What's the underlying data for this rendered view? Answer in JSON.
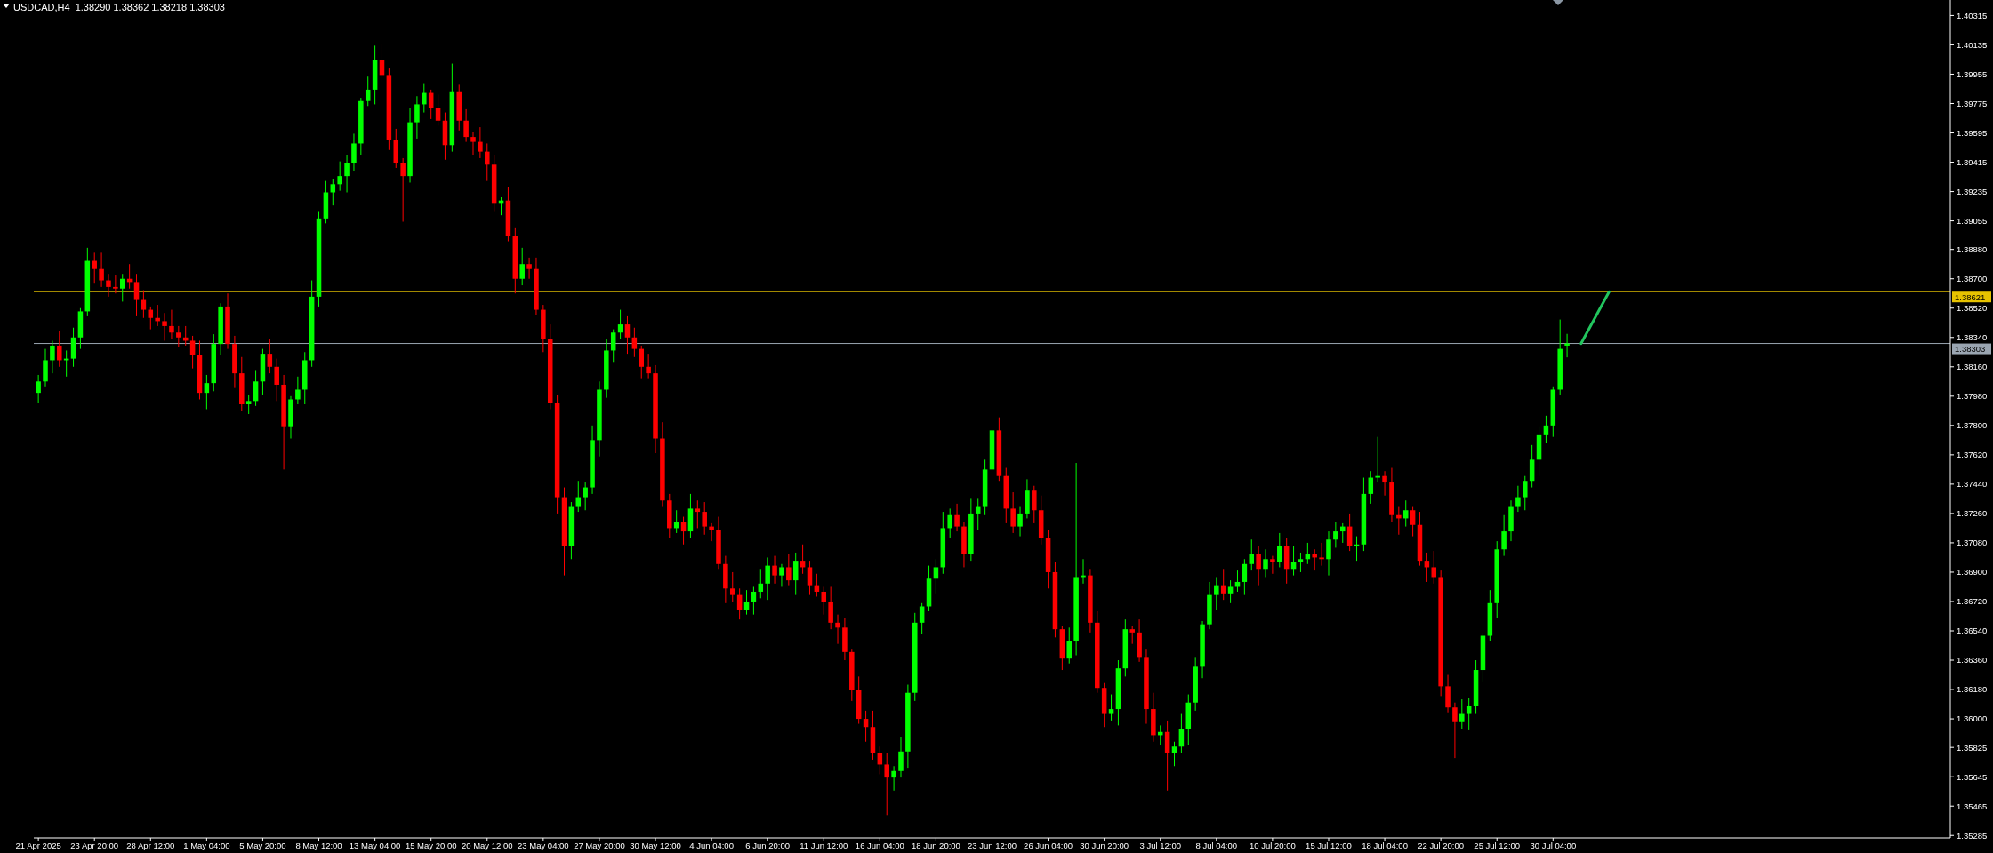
{
  "chart_data": {
    "type": "candlestick",
    "title": "USDCAD,H4  1.38290 1.38362 1.38218 1.38303",
    "categories": [
      "21 Apr 2025",
      null,
      null,
      null,
      null,
      null,
      null,
      null,
      "23 Apr 20:00",
      null,
      null,
      null,
      null,
      null,
      null,
      null,
      "28 Apr 12:00",
      null,
      null,
      null,
      null,
      null,
      null,
      null,
      "1 May 04:00",
      null,
      null,
      null,
      null,
      null,
      null,
      null,
      "5 May 20:00",
      null,
      null,
      null,
      null,
      null,
      null,
      null,
      "8 May 12:00",
      null,
      null,
      null,
      null,
      null,
      null,
      null,
      "13 May 04:00",
      null,
      null,
      null,
      null,
      null,
      null,
      null,
      "15 May 20:00",
      null,
      null,
      null,
      null,
      null,
      null,
      null,
      "20 May 12:00",
      null,
      null,
      null,
      null,
      null,
      null,
      null,
      "23 May 04:00",
      null,
      null,
      null,
      null,
      null,
      null,
      null,
      "27 May 20:00",
      null,
      null,
      null,
      null,
      null,
      null,
      null,
      "30 May 12:00",
      null,
      null,
      null,
      null,
      null,
      null,
      null,
      "4 Jun 04:00",
      null,
      null,
      null,
      null,
      null,
      null,
      null,
      "6 Jun 20:00",
      null,
      null,
      null,
      null,
      null,
      null,
      null,
      "11 Jun 12:00",
      null,
      null,
      null,
      null,
      null,
      null,
      null,
      "16 Jun 04:00",
      null,
      null,
      null,
      null,
      null,
      null,
      null,
      "18 Jun 20:00",
      null,
      null,
      null,
      null,
      null,
      null,
      null,
      "23 Jun 12:00",
      null,
      null,
      null,
      null,
      null,
      null,
      null,
      "26 Jun 04:00",
      null,
      null,
      null,
      null,
      null,
      null,
      null,
      "30 Jun 20:00",
      null,
      null,
      null,
      null,
      null,
      null,
      null,
      "3 Jul 12:00",
      null,
      null,
      null,
      null,
      null,
      null,
      null,
      "8 Jul 04:00",
      null,
      null,
      null,
      null,
      null,
      null,
      null,
      "10 Jul 20:00",
      null,
      null,
      null,
      null,
      null,
      null,
      null,
      "15 Jul 12:00",
      null,
      null,
      null,
      null,
      null,
      null,
      null,
      "18 Jul 04:00",
      null,
      null,
      null,
      null,
      null,
      null,
      null,
      "22 Jul 20:00",
      null,
      null,
      null,
      null,
      null,
      null,
      null,
      "25 Jul 12:00",
      null,
      null,
      null,
      null,
      null,
      null,
      null,
      "30 Jul 04:00",
      null,
      null,
      null,
      null,
      null,
      null,
      null,
      null,
      null,
      null,
      null,
      null,
      null,
      null,
      null,
      null,
      null,
      null,
      null,
      null,
      null,
      null,
      null,
      null,
      null,
      null,
      null,
      null,
      null,
      null,
      null,
      null,
      null,
      null,
      null,
      null,
      null,
      null,
      null,
      null,
      null,
      null,
      null,
      null,
      null,
      null,
      null,
      null,
      null,
      null,
      null,
      null,
      null,
      null,
      null,
      null
    ],
    "colors": [
      "#00ff00",
      "#00ff00",
      "#00ff00",
      "#ff0000",
      "#00ff00",
      "#00ff00",
      "#00ff00",
      "#00ff00",
      "#ff0000",
      "#ff0000",
      "#ff0000",
      "#ff0000",
      "#00ff00",
      "#ff0000",
      "#ff0000",
      "#ff0000",
      "#ff0000",
      "#ff0000",
      "#ff0000",
      "#ff0000",
      "#ff0000",
      "#ff0000",
      "#ff0000",
      "#ff0000",
      "#00ff00",
      "#00ff00",
      "#00ff00",
      "#ff0000",
      "#ff0000",
      "#ff0000",
      "#00ff00",
      "#00ff00",
      "#00ff00",
      "#ff0000",
      "#ff0000",
      "#ff0000",
      "#00ff00",
      "#00ff00",
      "#00ff00",
      "#00ff00",
      "#00ff00",
      "#00ff00",
      "#00ff00",
      "#00ff00",
      "#00ff00",
      "#00ff00",
      "#00ff00",
      "#00ff00",
      "#00ff00",
      "#ff0000",
      "#ff0000",
      "#ff0000",
      "#ff0000",
      "#00ff00",
      "#00ff00",
      "#00ff00",
      "#ff0000",
      "#ff0000",
      "#ff0000",
      "#00ff00",
      "#ff0000",
      "#ff0000",
      "#ff0000",
      "#ff0000",
      "#ff0000",
      "#ff0000",
      "#00ff00",
      "#ff0000",
      "#ff0000",
      "#00ff00",
      "#ff0000",
      "#ff0000",
      "#ff0000",
      "#ff0000",
      "#ff0000",
      "#ff0000",
      "#00ff00",
      "#00ff00",
      "#00ff00",
      "#00ff00",
      "#00ff00",
      "#00ff00",
      "#00ff00",
      "#00ff00",
      "#ff0000",
      "#ff0000",
      "#ff0000",
      "#ff0000",
      "#ff0000",
      "#ff0000",
      "#ff0000",
      "#00ff00",
      "#ff0000",
      "#00ff00",
      "#ff0000",
      "#ff0000",
      "#ff0000",
      "#ff0000",
      "#ff0000",
      "#ff0000",
      "#ff0000",
      "#00ff00",
      "#00ff00",
      "#00ff00",
      "#00ff00",
      "#ff0000",
      "#00ff00",
      "#ff0000",
      "#00ff00",
      "#ff0000",
      "#ff0000",
      "#ff0000",
      "#ff0000",
      "#ff0000",
      "#ff0000",
      "#ff0000",
      "#ff0000",
      "#ff0000",
      "#ff0000",
      "#ff0000",
      "#ff0000",
      "#ff0000",
      "#00ff00",
      "#00ff00",
      "#00ff00",
      "#00ff00",
      "#00ff00",
      "#00ff00",
      "#00ff00",
      "#00ff00",
      "#00ff00",
      "#ff0000",
      "#ff0000",
      "#00ff00",
      "#00ff00",
      "#00ff00",
      "#00ff00",
      "#ff0000",
      "#ff0000",
      "#ff0000",
      "#00ff00",
      "#00ff00",
      "#ff0000",
      "#ff0000",
      "#ff0000",
      "#ff0000",
      "#ff0000",
      "#00ff00",
      "#00ff00",
      "#00ff00",
      "#ff0000",
      "#ff0000",
      "#ff0000",
      "#00ff00",
      "#00ff00",
      "#00ff00",
      "#ff0000",
      "#ff0000",
      "#ff0000",
      "#ff0000",
      "#00ff00",
      "#ff0000",
      "#00ff00",
      "#00ff00",
      "#00ff00",
      "#00ff00",
      "#00ff00",
      "#00ff00",
      "#00ff00",
      "#ff0000",
      "#00ff00",
      "#00ff00",
      "#00ff00",
      "#00ff00",
      "#ff0000",
      "#00ff00",
      "#ff0000",
      "#00ff00",
      "#ff0000",
      "#00ff00",
      "#00ff00",
      "#00ff00",
      "#ff0000",
      "#ff0000",
      "#00ff00",
      "#00ff00",
      "#00ff00",
      "#ff0000",
      "#00ff00",
      "#00ff00",
      "#00ff00",
      "#00ff00",
      "#ff0000",
      "#ff0000",
      "#ff0000",
      "#00ff00",
      "#ff0000",
      "#ff0000",
      "#ff0000",
      "#ff0000",
      "#ff0000",
      "#ff0000",
      "#ff0000",
      "#00ff00",
      "#00ff00",
      "#00ff00",
      "#00ff00",
      "#00ff00",
      "#00ff00",
      "#00ff00",
      "#00ff00",
      "#00ff00",
      "#00ff00",
      "#00ff00",
      "#00ff00",
      "#00ff00",
      "#00ff00",
      "#00ff00",
      "#00ff00",
      null,
      null,
      null,
      null,
      null,
      null,
      null,
      null,
      null,
      null,
      null,
      null,
      null,
      null,
      null,
      null,
      null,
      null,
      null,
      null,
      null,
      null,
      null,
      null,
      null,
      null,
      null,
      null,
      null,
      null,
      null,
      null,
      null,
      null,
      null,
      null,
      null,
      null,
      null,
      null,
      null,
      null,
      null,
      null,
      null,
      null,
      null,
      null,
      null,
      null,
      null,
      null,
      null,
      null
    ],
    "ylim": [
      1.3527,
      1.4041
    ],
    "yticks": [
      1.40315,
      1.40135,
      1.39955,
      1.39775,
      1.39595,
      1.39415,
      1.39235,
      1.39055,
      {
        "value": 1.3888,
        "label": "1.38880"
      },
      {
        "value": 1.387,
        "label": "1.38700"
      },
      {
        "value": 1.3852,
        "label": "1.38520"
      },
      {
        "value": 1.3834,
        "label": "1.38340"
      },
      {
        "value": 1.3816,
        "label": "1.38160"
      },
      {
        "value": 1.3798,
        "label": "1.37980"
      },
      {
        "value": 1.378,
        "label": "1.37800"
      },
      {
        "value": 1.3762,
        "label": "1.37620"
      },
      {
        "value": 1.3744,
        "label": "1.37440"
      },
      {
        "value": 1.3726,
        "label": "1.37260"
      },
      {
        "value": 1.3708,
        "label": "1.37080"
      },
      {
        "value": 1.369,
        "label": "1.36900"
      },
      {
        "value": 1.3672,
        "label": "1.36720"
      },
      {
        "value": 1.3654,
        "label": "1.36540"
      },
      {
        "value": 1.3636,
        "label": "1.36360"
      },
      {
        "value": 1.3618,
        "label": "1.36180"
      },
      {
        "value": 1.36,
        "label": "1.36000"
      },
      1.35825,
      1.35645,
      1.35465,
      1.35285
    ],
    "ref_lines": [
      {
        "axis": "y",
        "value": 1.38621,
        "label": "1.38621",
        "color": "#e6c200"
      },
      {
        "axis": "y",
        "value": 1.38303,
        "label": "1.38303",
        "color": "#9aa5b1"
      }
    ],
    "series": [
      {
        "type": "line",
        "color": "#22c55e",
        "values": [
          null,
          null,
          null,
          null,
          null,
          null,
          null,
          null,
          null,
          null,
          null,
          null,
          null,
          null,
          null,
          null,
          null,
          null,
          null,
          null,
          null,
          null,
          null,
          null,
          null,
          null,
          null,
          null,
          null,
          null,
          null,
          null,
          null,
          null,
          null,
          null,
          null,
          null,
          null,
          null,
          null,
          null,
          null,
          null,
          null,
          null,
          null,
          null,
          null,
          null,
          null,
          null,
          null,
          null,
          null,
          null,
          null,
          null,
          null,
          null,
          null,
          null,
          null,
          null,
          null,
          null,
          null,
          null,
          null,
          null,
          null,
          null,
          null,
          null,
          null,
          null,
          null,
          null,
          null,
          null,
          null,
          null,
          null,
          null,
          null,
          null,
          null,
          null,
          null,
          null,
          null,
          null,
          null,
          null,
          null,
          null,
          null,
          null,
          null,
          null,
          null,
          null,
          null,
          null,
          null,
          null,
          null,
          null,
          null,
          null,
          null,
          null,
          null,
          null,
          null,
          null,
          null,
          null,
          null,
          null,
          null,
          null,
          null,
          null,
          null,
          null,
          null,
          null,
          null,
          null,
          null,
          null,
          null,
          null,
          null,
          null,
          null,
          null,
          null,
          null,
          null,
          null,
          null,
          null,
          null,
          null,
          null,
          null,
          null,
          null,
          null,
          null,
          null,
          null,
          null,
          null,
          null,
          null,
          null,
          null,
          null,
          null,
          null,
          null,
          null,
          null,
          null,
          null,
          null,
          null,
          null,
          null,
          null,
          null,
          null,
          null,
          null,
          null,
          null,
          null,
          null,
          null,
          null,
          null,
          null,
          null,
          null,
          null,
          null,
          null,
          null,
          null,
          null,
          null,
          null,
          null,
          null,
          null,
          null,
          null,
          null,
          null,
          null,
          null,
          null,
          null,
          null,
          null,
          null,
          null,
          null,
          null,
          null,
          null,
          null,
          null,
          null,
          null,
          null,
          null,
          1.38303,
          null,
          null,
          null,
          1.38621,
          null,
          null,
          null,
          null,
          null,
          null,
          null,
          null,
          null,
          null,
          null,
          null,
          null,
          null,
          null,
          null,
          null,
          null,
          null,
          null,
          null,
          null,
          null,
          null,
          null,
          null,
          null,
          null,
          null,
          null,
          null,
          null,
          null,
          null,
          null,
          null,
          null,
          null,
          null,
          null,
          null,
          null,
          null,
          null,
          null,
          null,
          null,
          null
        ]
      }
    ],
    "ohlc": [
      [
        1.38,
        1.3811,
        1.3794,
        1.3807
      ],
      [
        1.3807,
        1.3827,
        1.3804,
        1.382
      ],
      [
        1.382,
        1.3832,
        1.3812,
        1.3829
      ],
      [
        1.3829,
        1.3838,
        1.3816,
        1.382
      ],
      [
        1.382,
        1.3826,
        1.381,
        1.3821
      ],
      [
        1.3821,
        1.384,
        1.3816,
        1.3834
      ],
      [
        1.3834,
        1.3852,
        1.3827,
        1.385
      ],
      [
        1.385,
        1.3889,
        1.3847,
        1.3881
      ],
      [
        1.3881,
        1.3886,
        1.3867,
        1.3876
      ],
      [
        1.3876,
        1.3886,
        1.3865,
        1.3869
      ],
      [
        1.3869,
        1.3873,
        1.3859,
        1.3865
      ],
      [
        1.3865,
        1.3872,
        1.3861,
        1.3864
      ],
      [
        1.3864,
        1.3873,
        1.3856,
        1.387
      ],
      [
        1.387,
        1.3879,
        1.3864,
        1.3868
      ],
      [
        1.3868,
        1.3873,
        1.3847,
        1.3857
      ],
      [
        1.3857,
        1.3863,
        1.3846,
        1.3851
      ],
      [
        1.3851,
        1.3853,
        1.3839,
        1.3846
      ],
      [
        1.3846,
        1.3854,
        1.3841,
        1.3844
      ],
      [
        1.3844,
        1.3849,
        1.3832,
        1.3841
      ],
      [
        1.3841,
        1.3851,
        1.3833,
        1.3837
      ],
      [
        1.3837,
        1.3841,
        1.3828,
        1.3834
      ],
      [
        1.3834,
        1.3841,
        1.3829,
        1.3832
      ],
      [
        1.3832,
        1.3835,
        1.3815,
        1.3823
      ],
      [
        1.3823,
        1.3832,
        1.3796,
        1.38
      ],
      [
        1.38,
        1.3811,
        1.379,
        1.3806
      ],
      [
        1.3806,
        1.3836,
        1.3801,
        1.383
      ],
      [
        1.383,
        1.3855,
        1.3823,
        1.3853
      ],
      [
        1.3853,
        1.3861,
        1.3827,
        1.383
      ],
      [
        1.383,
        1.3835,
        1.3803,
        1.3812
      ],
      [
        1.3812,
        1.3822,
        1.3789,
        1.3793
      ],
      [
        1.3793,
        1.3799,
        1.3787,
        1.3795
      ],
      [
        1.3795,
        1.3814,
        1.3792,
        1.3807
      ],
      [
        1.3807,
        1.3827,
        1.3799,
        1.3824
      ],
      [
        1.3824,
        1.3833,
        1.3812,
        1.3816
      ],
      [
        1.3816,
        1.3821,
        1.3795,
        1.3805
      ],
      [
        1.3805,
        1.3811,
        1.3753,
        1.3779
      ],
      [
        1.3779,
        1.3798,
        1.3772,
        1.3796
      ],
      [
        1.3796,
        1.381,
        1.3793,
        1.3802
      ],
      [
        1.3802,
        1.3825,
        1.3793,
        1.382
      ],
      [
        1.382,
        1.3869,
        1.3816,
        1.3859
      ],
      [
        1.3859,
        1.3911,
        1.3853,
        1.3907
      ],
      [
        1.3907,
        1.393,
        1.3904,
        1.3923
      ],
      [
        1.3923,
        1.3931,
        1.3915,
        1.3928
      ],
      [
        1.3928,
        1.3942,
        1.3924,
        1.3933
      ],
      [
        1.3933,
        1.3946,
        1.3923,
        1.3941
      ],
      [
        1.3941,
        1.3959,
        1.3936,
        1.3953
      ],
      [
        1.3953,
        1.3981,
        1.3946,
        1.3979
      ],
      [
        1.3979,
        1.3994,
        1.3976,
        1.3986
      ],
      [
        1.3986,
        1.4013,
        1.3977,
        1.4004
      ],
      [
        1.4004,
        1.4014,
        1.3991,
        1.3995
      ],
      [
        1.3995,
        1.3999,
        1.3949,
        1.3955
      ],
      [
        1.3955,
        1.3962,
        1.3938,
        1.3941
      ],
      [
        1.3941,
        1.3944,
        1.3905,
        1.3933
      ],
      [
        1.3933,
        1.3975,
        1.3929,
        1.3966
      ],
      [
        1.3966,
        1.3982,
        1.3956,
        1.3977
      ],
      [
        1.3977,
        1.399,
        1.3972,
        1.3984
      ],
      [
        1.3984,
        1.3986,
        1.3968,
        1.3975
      ],
      [
        1.3975,
        1.3983,
        1.3964,
        1.3967
      ],
      [
        1.3967,
        1.3972,
        1.3943,
        1.3952
      ],
      [
        1.3952,
        1.4002,
        1.3948,
        1.3985
      ],
      [
        1.3985,
        1.3989,
        1.3961,
        1.3967
      ],
      [
        1.3967,
        1.3974,
        1.3954,
        1.3957
      ],
      [
        1.3957,
        1.396,
        1.3946,
        1.3954
      ],
      [
        1.3954,
        1.3963,
        1.3944,
        1.3948
      ],
      [
        1.3948,
        1.3953,
        1.393,
        1.394
      ],
      [
        1.394,
        1.3946,
        1.3911,
        1.3916
      ],
      [
        1.3916,
        1.392,
        1.3909,
        1.3918
      ],
      [
        1.3918,
        1.3926,
        1.3893,
        1.3896
      ],
      [
        1.3896,
        1.3901,
        1.3861,
        1.387
      ],
      [
        1.387,
        1.3889,
        1.3866,
        1.3879
      ],
      [
        1.3879,
        1.3883,
        1.387,
        1.3876
      ],
      [
        1.3876,
        1.3883,
        1.3848,
        1.3851
      ],
      [
        1.3851,
        1.3854,
        1.3825,
        1.3833
      ],
      [
        1.3833,
        1.3842,
        1.379,
        1.3794
      ],
      [
        1.3794,
        1.3799,
        1.3726,
        1.3736
      ],
      [
        1.3736,
        1.3742,
        1.3688,
        1.3706
      ],
      [
        1.3706,
        1.3733,
        1.3698,
        1.373
      ],
      [
        1.373,
        1.3746,
        1.3727,
        1.3736
      ],
      [
        1.3736,
        1.3745,
        1.3728,
        1.3742
      ],
      [
        1.3742,
        1.378,
        1.3738,
        1.3771
      ],
      [
        1.3771,
        1.3807,
        1.3761,
        1.3802
      ],
      [
        1.3802,
        1.3833,
        1.3797,
        1.3826
      ],
      [
        1.3826,
        1.3839,
        1.3819,
        1.3837
      ],
      [
        1.3837,
        1.3851,
        1.3833,
        1.3842
      ],
      [
        1.3842,
        1.3847,
        1.3824,
        1.3834
      ],
      [
        1.3834,
        1.384,
        1.3822,
        1.3827
      ],
      [
        1.3827,
        1.3829,
        1.3809,
        1.3816
      ],
      [
        1.3816,
        1.3824,
        1.3809,
        1.3812
      ],
      [
        1.3812,
        1.3817,
        1.3763,
        1.3772
      ],
      [
        1.3772,
        1.3782,
        1.373,
        1.3734
      ],
      [
        1.3734,
        1.3738,
        1.3711,
        1.3717
      ],
      [
        1.3717,
        1.3728,
        1.3714,
        1.3721
      ],
      [
        1.3721,
        1.3724,
        1.3707,
        1.3715
      ],
      [
        1.3715,
        1.3738,
        1.3711,
        1.3729
      ],
      [
        1.3729,
        1.3734,
        1.3717,
        1.3727
      ],
      [
        1.3727,
        1.3733,
        1.3713,
        1.3718
      ],
      [
        1.3718,
        1.372,
        1.3709,
        1.3716
      ],
      [
        1.3716,
        1.3724,
        1.3692,
        1.3695
      ],
      [
        1.3695,
        1.37,
        1.3671,
        1.368
      ],
      [
        1.368,
        1.369,
        1.3672,
        1.3676
      ],
      [
        1.3676,
        1.368,
        1.3661,
        1.3667
      ],
      [
        1.3667,
        1.3679,
        1.3664,
        1.3672
      ],
      [
        1.3672,
        1.3681,
        1.3664,
        1.3678
      ],
      [
        1.3678,
        1.3692,
        1.3674,
        1.3683
      ],
      [
        1.3683,
        1.3699,
        1.3673,
        1.3694
      ],
      [
        1.3694,
        1.37,
        1.3683,
        1.3688
      ],
      [
        1.3688,
        1.3695,
        1.3681,
        1.3693
      ],
      [
        1.3693,
        1.3701,
        1.3682,
        1.3685
      ],
      [
        1.3685,
        1.3702,
        1.3676,
        1.3697
      ],
      [
        1.3697,
        1.3707,
        1.3689,
        1.3693
      ],
      [
        1.3693,
        1.3697,
        1.3676,
        1.3682
      ],
      [
        1.3682,
        1.3689,
        1.3675,
        1.3678
      ],
      [
        1.3678,
        1.3681,
        1.3664,
        1.3672
      ],
      [
        1.3672,
        1.3681,
        1.3655,
        1.3659
      ],
      [
        1.3659,
        1.3664,
        1.3646,
        1.3656
      ],
      [
        1.3656,
        1.3662,
        1.3636,
        1.3641
      ],
      [
        1.3641,
        1.3643,
        1.3611,
        1.3618
      ],
      [
        1.3618,
        1.3626,
        1.3597,
        1.36
      ],
      [
        1.36,
        1.3605,
        1.3586,
        1.3595
      ],
      [
        1.3595,
        1.3605,
        1.3575,
        1.3579
      ],
      [
        1.3579,
        1.3583,
        1.3566,
        1.3572
      ],
      [
        1.3572,
        1.3579,
        1.3541,
        1.3564
      ],
      [
        1.3564,
        1.3571,
        1.3556,
        1.3568
      ],
      [
        1.3568,
        1.3589,
        1.3564,
        1.358
      ],
      [
        1.358,
        1.3621,
        1.357,
        1.3616
      ],
      [
        1.3616,
        1.3665,
        1.3611,
        1.3659
      ],
      [
        1.3659,
        1.3671,
        1.3652,
        1.3669
      ],
      [
        1.3669,
        1.3694,
        1.3666,
        1.3686
      ],
      [
        1.3686,
        1.3698,
        1.3677,
        1.3693
      ],
      [
        1.3693,
        1.3727,
        1.3689,
        1.3717
      ],
      [
        1.3717,
        1.3729,
        1.3711,
        1.3725
      ],
      [
        1.3725,
        1.3732,
        1.3715,
        1.3718
      ],
      [
        1.3718,
        1.3721,
        1.3693,
        1.3701
      ],
      [
        1.3701,
        1.3735,
        1.3697,
        1.3726
      ],
      [
        1.3726,
        1.3735,
        1.3716,
        1.373
      ],
      [
        1.373,
        1.3759,
        1.3725,
        1.3753
      ],
      [
        1.3753,
        1.3797,
        1.3746,
        1.3777
      ],
      [
        1.3777,
        1.3785,
        1.3746,
        1.3749
      ],
      [
        1.3749,
        1.3754,
        1.372,
        1.3729
      ],
      [
        1.3729,
        1.3739,
        1.3714,
        1.3718
      ],
      [
        1.3718,
        1.373,
        1.3712,
        1.3726
      ],
      [
        1.3726,
        1.3747,
        1.3723,
        1.374
      ],
      [
        1.374,
        1.3743,
        1.372,
        1.3728
      ],
      [
        1.3728,
        1.3737,
        1.3707,
        1.3711
      ],
      [
        1.3711,
        1.3716,
        1.368,
        1.369
      ],
      [
        1.369,
        1.3696,
        1.365,
        1.3655
      ],
      [
        1.3655,
        1.3657,
        1.363,
        1.3637
      ],
      [
        1.3637,
        1.3656,
        1.3634,
        1.3648
      ],
      [
        1.3648,
        1.3757,
        1.3639,
        1.3687
      ],
      [
        1.3687,
        1.3698,
        1.3683,
        1.3688
      ],
      [
        1.3688,
        1.3692,
        1.3653,
        1.3659
      ],
      [
        1.3659,
        1.3666,
        1.3616,
        1.3619
      ],
      [
        1.3619,
        1.3622,
        1.3595,
        1.3603
      ],
      [
        1.3603,
        1.3615,
        1.3599,
        1.3606
      ],
      [
        1.3606,
        1.3636,
        1.3596,
        1.3631
      ],
      [
        1.3631,
        1.3661,
        1.3626,
        1.3655
      ],
      [
        1.3655,
        1.3657,
        1.3646,
        1.3653
      ],
      [
        1.3653,
        1.3661,
        1.3635,
        1.3638
      ],
      [
        1.3638,
        1.3643,
        1.3597,
        1.3606
      ],
      [
        1.3606,
        1.3616,
        1.3586,
        1.359
      ],
      [
        1.359,
        1.3596,
        1.3584,
        1.3592
      ],
      [
        1.3592,
        1.3599,
        1.3556,
        1.3579
      ],
      [
        1.3579,
        1.3586,
        1.3571,
        1.3583
      ],
      [
        1.3583,
        1.3603,
        1.3579,
        1.3594
      ],
      [
        1.3594,
        1.3615,
        1.3584,
        1.361
      ],
      [
        1.361,
        1.3638,
        1.3605,
        1.3632
      ],
      [
        1.3632,
        1.366,
        1.3625,
        1.3658
      ],
      [
        1.3658,
        1.3684,
        1.3655,
        1.3676
      ],
      [
        1.3676,
        1.3687,
        1.3667,
        1.3682
      ],
      [
        1.3682,
        1.3692,
        1.3673,
        1.3677
      ],
      [
        1.3677,
        1.3685,
        1.3671,
        1.3681
      ],
      [
        1.3681,
        1.3691,
        1.3678,
        1.3684
      ],
      [
        1.3684,
        1.3698,
        1.3676,
        1.3695
      ],
      [
        1.3695,
        1.371,
        1.3691,
        1.3701
      ],
      [
        1.3701,
        1.3706,
        1.3682,
        1.3692
      ],
      [
        1.3692,
        1.3704,
        1.3687,
        1.3698
      ],
      [
        1.3698,
        1.37,
        1.3689,
        1.3696
      ],
      [
        1.3696,
        1.3714,
        1.3693,
        1.3706
      ],
      [
        1.3706,
        1.3711,
        1.3683,
        1.3692
      ],
      [
        1.3692,
        1.3706,
        1.3688,
        1.3696
      ],
      [
        1.3696,
        1.3702,
        1.369,
        1.3698
      ],
      [
        1.3698,
        1.3708,
        1.3695,
        1.3701
      ],
      [
        1.3701,
        1.3704,
        1.3691,
        1.3699
      ],
      [
        1.3699,
        1.3708,
        1.3694,
        1.3698
      ],
      [
        1.3698,
        1.3715,
        1.3688,
        1.371
      ],
      [
        1.371,
        1.3721,
        1.3705,
        1.3715
      ],
      [
        1.3715,
        1.372,
        1.3708,
        1.3718
      ],
      [
        1.3718,
        1.3726,
        1.3703,
        1.3706
      ],
      [
        1.3706,
        1.3712,
        1.3697,
        1.3707
      ],
      [
        1.3707,
        1.3748,
        1.3703,
        1.3738
      ],
      [
        1.3738,
        1.3752,
        1.3732,
        1.3748
      ],
      [
        1.3748,
        1.3773,
        1.3745,
        1.3749
      ],
      [
        1.3749,
        1.3752,
        1.3737,
        1.3745
      ],
      [
        1.3745,
        1.3754,
        1.3721,
        1.3725
      ],
      [
        1.3725,
        1.373,
        1.3713,
        1.3723
      ],
      [
        1.3723,
        1.3734,
        1.3718,
        1.3728
      ],
      [
        1.3728,
        1.373,
        1.3712,
        1.3719
      ],
      [
        1.3719,
        1.3727,
        1.3694,
        1.3697
      ],
      [
        1.3697,
        1.3702,
        1.3684,
        1.3693
      ],
      [
        1.3693,
        1.3703,
        1.3683,
        1.3687
      ],
      [
        1.3687,
        1.3691,
        1.3614,
        1.362
      ],
      [
        1.362,
        1.3627,
        1.3604,
        1.3607
      ],
      [
        1.3607,
        1.361,
        1.3576,
        1.3598
      ],
      [
        1.3598,
        1.3612,
        1.3594,
        1.3603
      ],
      [
        1.3603,
        1.3613,
        1.3593,
        1.3608
      ],
      [
        1.3608,
        1.3636,
        1.3603,
        1.363
      ],
      [
        1.363,
        1.3653,
        1.3623,
        1.3651
      ],
      [
        1.3651,
        1.3679,
        1.3648,
        1.3671
      ],
      [
        1.3671,
        1.3709,
        1.3662,
        1.3704
      ],
      [
        1.3704,
        1.3725,
        1.37,
        1.3715
      ],
      [
        1.3715,
        1.3734,
        1.3709,
        1.373
      ],
      [
        1.373,
        1.3743,
        1.3727,
        1.3736
      ],
      [
        1.3736,
        1.3749,
        1.3728,
        1.3746
      ],
      [
        1.3746,
        1.3768,
        1.3742,
        1.3759
      ],
      [
        1.3759,
        1.3779,
        1.3749,
        1.3774
      ],
      [
        1.3774,
        1.3786,
        1.3769,
        1.378
      ],
      [
        1.378,
        1.3804,
        1.3773,
        1.3802
      ],
      [
        1.3802,
        1.3845,
        1.3799,
        1.3827
      ],
      [
        1.3829,
        1.38362,
        1.38218,
        1.38303
      ],
      null,
      null,
      null,
      null,
      null,
      null,
      null,
      null,
      null,
      null,
      null,
      null,
      null,
      null,
      null,
      null,
      null,
      null,
      null,
      null,
      null,
      null,
      null,
      null,
      null,
      null,
      null,
      null,
      null,
      null,
      null,
      null,
      null,
      null,
      null,
      null,
      null,
      null,
      null,
      null,
      null,
      null,
      null,
      null,
      null,
      null,
      null,
      null,
      null,
      null,
      null,
      null,
      null,
      null
    ]
  }
}
